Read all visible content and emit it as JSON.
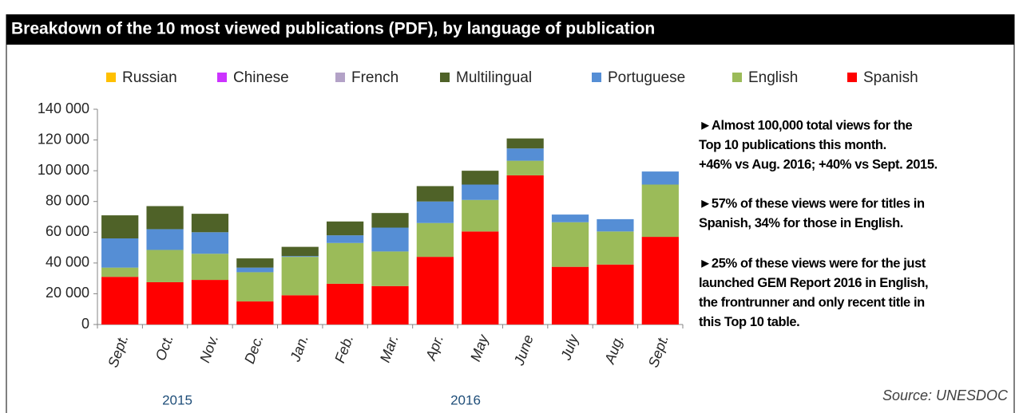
{
  "chart_data": {
    "type": "stacked_bar",
    "title": "Breakdown of the 10 most viewed publications (PDF), by language of publication",
    "categories": [
      "Sept.",
      "Oct.",
      "Nov.",
      "Dec.",
      "Jan.",
      "Feb.",
      "Mar.",
      "Apr.",
      "May",
      "June",
      "July",
      "Aug.",
      "Sept."
    ],
    "series": [
      {
        "name": "Russian",
        "color": "#ffc000",
        "values": [
          0,
          0,
          0,
          0,
          0,
          0,
          0,
          0,
          0,
          0,
          0,
          0,
          0
        ]
      },
      {
        "name": "Chinese",
        "color": "#cc33ff",
        "values": [
          0,
          0,
          0,
          0,
          0,
          0,
          0,
          0,
          0,
          0,
          0,
          0,
          0
        ]
      },
      {
        "name": "French",
        "color": "#b3a2c7",
        "values": [
          0,
          0,
          0,
          0,
          0,
          0,
          0,
          0,
          0,
          0,
          0,
          0,
          0
        ]
      },
      {
        "name": "Multilingual",
        "color": "#4f6228",
        "values": [
          15000,
          15000,
          12000,
          6000,
          6000,
          9000,
          9500,
          10000,
          9000,
          6500,
          0,
          0,
          0
        ]
      },
      {
        "name": "Portuguese",
        "color": "#558ed5",
        "values": [
          19000,
          13500,
          14000,
          3000,
          500,
          5000,
          15500,
          14000,
          10000,
          8000,
          5000,
          8000,
          8500
        ]
      },
      {
        "name": "English",
        "color": "#9bbb59",
        "values": [
          6000,
          21000,
          17000,
          19000,
          25000,
          26500,
          22500,
          22000,
          20500,
          9500,
          29000,
          21500,
          34000
        ]
      },
      {
        "name": "Spanish",
        "color": "#ff0000",
        "values": [
          31000,
          27500,
          29000,
          15000,
          19000,
          26500,
          25000,
          44000,
          60500,
          97000,
          37500,
          39000,
          57000
        ]
      }
    ],
    "ylim": [
      0,
      140000
    ],
    "yticks": [
      0,
      {
        "value": 20000,
        "label": "20 000"
      },
      {
        "value": 40000,
        "label": "40 000"
      },
      {
        "value": 60000,
        "label": "60 000"
      },
      {
        "value": 80000,
        "label": "80 000"
      },
      {
        "value": 100000,
        "label": "100 000"
      },
      {
        "value": 120000,
        "label": "120 000"
      },
      {
        "value": 140000,
        "label": "140 000"
      }
    ],
    "grid": false,
    "legend": "top",
    "years": [
      "2015",
      "2016"
    ],
    "notes": [
      [
        "►Almost 100,000 total views for the",
        "Top 10 publications this month.",
        "+46% vs Aug. 2016; +40% vs Sept. 2015."
      ],
      [
        "►57% of these views were for titles in",
        "Spanish, 34% for those in English."
      ],
      [
        "►25% of these views were for the just",
        "launched GEM Report 2016 in English,",
        "the frontrunner and only recent  title in",
        "this Top 10 table."
      ]
    ],
    "source": "Source: UNESDOC"
  }
}
